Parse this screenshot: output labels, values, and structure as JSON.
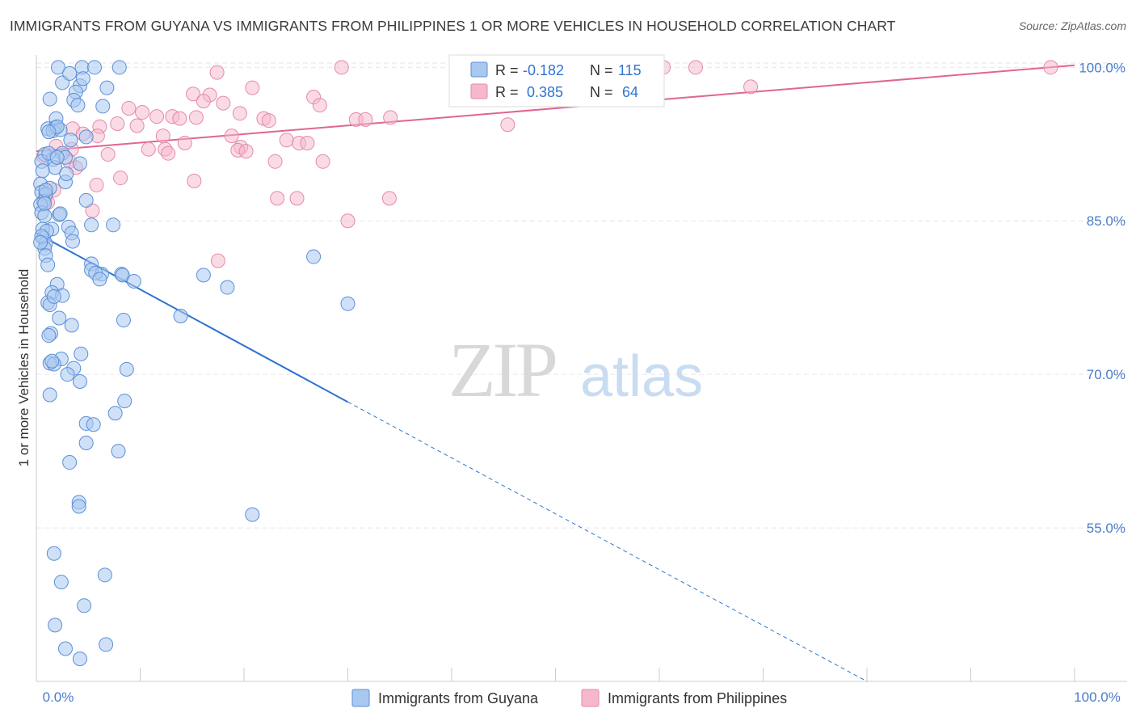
{
  "title": "IMMIGRANTS FROM GUYANA VS IMMIGRANTS FROM PHILIPPINES 1 OR MORE VEHICLES IN HOUSEHOLD CORRELATION CHART",
  "source": "Source: ZipAtlas.com",
  "watermark": {
    "zip": "ZIP",
    "atlas": "atlas"
  },
  "colors": {
    "guyana_fill": "#a9c8f0",
    "guyana_stroke": "#5b8fd6",
    "guyana_line": "#2f74d0",
    "philippines_fill": "#f5b8cb",
    "philippines_stroke": "#e68aa7",
    "philippines_line": "#e0668f",
    "tick_text": "#4a7cc9",
    "grid": "#e6e6e6"
  },
  "legend": {
    "rows": [
      {
        "r_label": "R =",
        "r_value": "-0.182",
        "n_label": "N =",
        "n_value": "115"
      },
      {
        "r_label": "R =",
        "r_value": " 0.385",
        "n_label": "N =",
        "n_value": " 64"
      }
    ]
  },
  "chart_data": {
    "type": "scatter",
    "title": "IMMIGRANTS FROM GUYANA VS IMMIGRANTS FROM PHILIPPINES 1 OR MORE VEHICLES IN HOUSEHOLD CORRELATION CHART",
    "xlabel": "",
    "ylabel": "1 or more Vehicles in Household",
    "xlim": [
      0,
      100
    ],
    "ylim": [
      40,
      102
    ],
    "x_tick_labels": [
      "0.0%",
      "100.0%"
    ],
    "y_ticks": [
      55,
      70,
      85,
      100
    ],
    "y_tick_labels": [
      "55.0%",
      "70.0%",
      "85.0%",
      "100.0%"
    ],
    "grid": true,
    "legend_position": "top-center",
    "series": [
      {
        "name": "Immigrants from Guyana",
        "R": -0.182,
        "N": 115,
        "trend": {
          "x0": 0,
          "y0": 83.8,
          "x1": 30,
          "y1": 67.3,
          "dashed_to_x": 80,
          "dashed_to_y": 40.0
        },
        "points": [
          [
            2.1,
            100.0
          ],
          [
            4.4,
            100.0
          ],
          [
            5.6,
            100.0
          ],
          [
            8.0,
            100.0
          ],
          [
            2.5,
            98.5
          ],
          [
            4.2,
            98.2
          ],
          [
            3.8,
            97.6
          ],
          [
            6.8,
            98.0
          ],
          [
            1.3,
            96.9
          ],
          [
            3.6,
            96.8
          ],
          [
            4.0,
            96.3
          ],
          [
            1.9,
            95.0
          ],
          [
            1.1,
            94.0
          ],
          [
            1.8,
            94.1
          ],
          [
            1.6,
            93.8
          ],
          [
            2.3,
            93.9
          ],
          [
            4.8,
            93.2
          ],
          [
            0.8,
            91.5
          ],
          [
            2.5,
            91.6
          ],
          [
            2.8,
            91.2
          ],
          [
            1.6,
            91.0
          ],
          [
            0.5,
            90.8
          ],
          [
            4.2,
            90.6
          ],
          [
            1.8,
            90.2
          ],
          [
            0.6,
            89.9
          ],
          [
            0.4,
            88.6
          ],
          [
            2.8,
            88.8
          ],
          [
            1.3,
            88.2
          ],
          [
            0.5,
            87.8
          ],
          [
            0.9,
            87.6
          ],
          [
            4.8,
            87.0
          ],
          [
            0.7,
            86.9
          ],
          [
            0.4,
            86.6
          ],
          [
            0.5,
            85.8
          ],
          [
            2.2,
            85.6
          ],
          [
            0.8,
            85.5
          ],
          [
            1.5,
            84.2
          ],
          [
            3.1,
            84.4
          ],
          [
            5.3,
            84.6
          ],
          [
            7.4,
            84.6
          ],
          [
            0.6,
            84.2
          ],
          [
            3.4,
            83.8
          ],
          [
            0.7,
            83.3
          ],
          [
            3.5,
            83.0
          ],
          [
            0.9,
            82.8
          ],
          [
            0.8,
            82.3
          ],
          [
            0.9,
            81.6
          ],
          [
            5.3,
            80.8
          ],
          [
            5.3,
            80.2
          ],
          [
            6.3,
            79.8
          ],
          [
            8.2,
            79.8
          ],
          [
            8.3,
            79.7
          ],
          [
            9.4,
            79.1
          ],
          [
            16.1,
            79.7
          ],
          [
            18.4,
            78.5
          ],
          [
            2.0,
            78.8
          ],
          [
            1.5,
            78.0
          ],
          [
            2.5,
            77.7
          ],
          [
            1.1,
            77.0
          ],
          [
            1.3,
            76.8
          ],
          [
            13.9,
            75.7
          ],
          [
            8.4,
            75.3
          ],
          [
            3.4,
            74.8
          ],
          [
            1.4,
            74.0
          ],
          [
            1.2,
            73.8
          ],
          [
            2.4,
            71.5
          ],
          [
            1.3,
            71.1
          ],
          [
            1.7,
            71.0
          ],
          [
            3.6,
            70.6
          ],
          [
            8.7,
            70.5
          ],
          [
            4.2,
            69.3
          ],
          [
            1.3,
            68.0
          ],
          [
            8.5,
            67.4
          ],
          [
            7.6,
            66.2
          ],
          [
            4.8,
            65.2
          ],
          [
            5.5,
            65.1
          ],
          [
            4.8,
            63.3
          ],
          [
            7.9,
            62.5
          ],
          [
            3.2,
            61.4
          ],
          [
            4.1,
            57.5
          ],
          [
            4.1,
            57.1
          ],
          [
            20.8,
            56.3
          ],
          [
            1.7,
            52.5
          ],
          [
            2.4,
            49.7
          ],
          [
            6.6,
            50.4
          ],
          [
            4.6,
            47.4
          ],
          [
            1.8,
            45.5
          ],
          [
            2.8,
            43.2
          ],
          [
            6.7,
            43.6
          ],
          [
            4.2,
            42.2
          ],
          [
            26.7,
            81.5
          ],
          [
            30.0,
            76.9
          ],
          [
            4.5,
            98.9
          ],
          [
            3.2,
            99.4
          ],
          [
            2.0,
            94.2
          ],
          [
            6.4,
            96.2
          ],
          [
            1.2,
            93.7
          ],
          [
            1.2,
            91.6
          ],
          [
            2.0,
            91.2
          ],
          [
            3.3,
            92.9
          ],
          [
            2.9,
            89.6
          ],
          [
            0.9,
            88.0
          ],
          [
            0.8,
            86.7
          ],
          [
            2.3,
            85.7
          ],
          [
            1.0,
            84.0
          ],
          [
            0.5,
            83.5
          ],
          [
            0.4,
            82.9
          ],
          [
            1.1,
            80.7
          ],
          [
            5.7,
            79.9
          ],
          [
            6.1,
            79.3
          ],
          [
            1.7,
            77.6
          ],
          [
            2.2,
            75.5
          ],
          [
            4.3,
            72.0
          ],
          [
            1.5,
            71.3
          ],
          [
            3.0,
            70.0
          ]
        ]
      },
      {
        "name": "Immigrants from Philippines",
        "R": 0.385,
        "N": 64,
        "trend": {
          "x0": 0,
          "y0": 91.8,
          "x1": 100,
          "y1": 100.2
        },
        "points": [
          [
            17.4,
            99.5
          ],
          [
            29.4,
            100.0
          ],
          [
            60.4,
            100.0
          ],
          [
            63.5,
            100.0
          ],
          [
            97.7,
            100.0
          ],
          [
            68.8,
            98.1
          ],
          [
            20.8,
            98.0
          ],
          [
            15.1,
            97.4
          ],
          [
            16.7,
            97.3
          ],
          [
            26.7,
            97.1
          ],
          [
            18.0,
            96.5
          ],
          [
            16.1,
            96.7
          ],
          [
            27.3,
            96.3
          ],
          [
            8.9,
            96.0
          ],
          [
            10.2,
            95.6
          ],
          [
            11.6,
            95.2
          ],
          [
            15.4,
            95.1
          ],
          [
            19.6,
            95.5
          ],
          [
            13.1,
            95.2
          ],
          [
            13.8,
            95.0
          ],
          [
            21.9,
            95.0
          ],
          [
            22.4,
            94.8
          ],
          [
            30.8,
            94.9
          ],
          [
            31.7,
            94.9
          ],
          [
            34.1,
            95.1
          ],
          [
            45.4,
            94.4
          ],
          [
            7.8,
            94.5
          ],
          [
            9.7,
            94.3
          ],
          [
            6.1,
            94.2
          ],
          [
            3.5,
            94.0
          ],
          [
            4.5,
            93.5
          ],
          [
            5.9,
            93.3
          ],
          [
            18.8,
            93.3
          ],
          [
            24.1,
            92.9
          ],
          [
            25.3,
            92.6
          ],
          [
            19.7,
            92.2
          ],
          [
            26.1,
            92.6
          ],
          [
            14.3,
            92.6
          ],
          [
            1.9,
            92.3
          ],
          [
            3.4,
            92.0
          ],
          [
            10.8,
            92.0
          ],
          [
            12.4,
            92.0
          ],
          [
            19.4,
            91.9
          ],
          [
            20.2,
            91.8
          ],
          [
            12.7,
            91.6
          ],
          [
            0.7,
            91.3
          ],
          [
            6.9,
            91.5
          ],
          [
            3.2,
            90.8
          ],
          [
            23.0,
            90.8
          ],
          [
            27.6,
            90.8
          ],
          [
            3.8,
            90.2
          ],
          [
            8.1,
            89.2
          ],
          [
            15.2,
            88.9
          ],
          [
            5.8,
            88.5
          ],
          [
            1.7,
            88.0
          ],
          [
            0.9,
            87.4
          ],
          [
            1.1,
            86.8
          ],
          [
            23.2,
            87.2
          ],
          [
            25.1,
            87.2
          ],
          [
            34.0,
            87.2
          ],
          [
            5.4,
            86.0
          ],
          [
            30.0,
            85.0
          ],
          [
            17.5,
            81.1
          ],
          [
            12.2,
            93.3
          ]
        ]
      }
    ]
  },
  "axis": {
    "y_title": "1 or more Vehicles in Household",
    "x_left": "0.0%",
    "x_right": "100.0%"
  },
  "bottom_legend": {
    "series1": "Immigrants from Guyana",
    "series2": "Immigrants from Philippines"
  }
}
